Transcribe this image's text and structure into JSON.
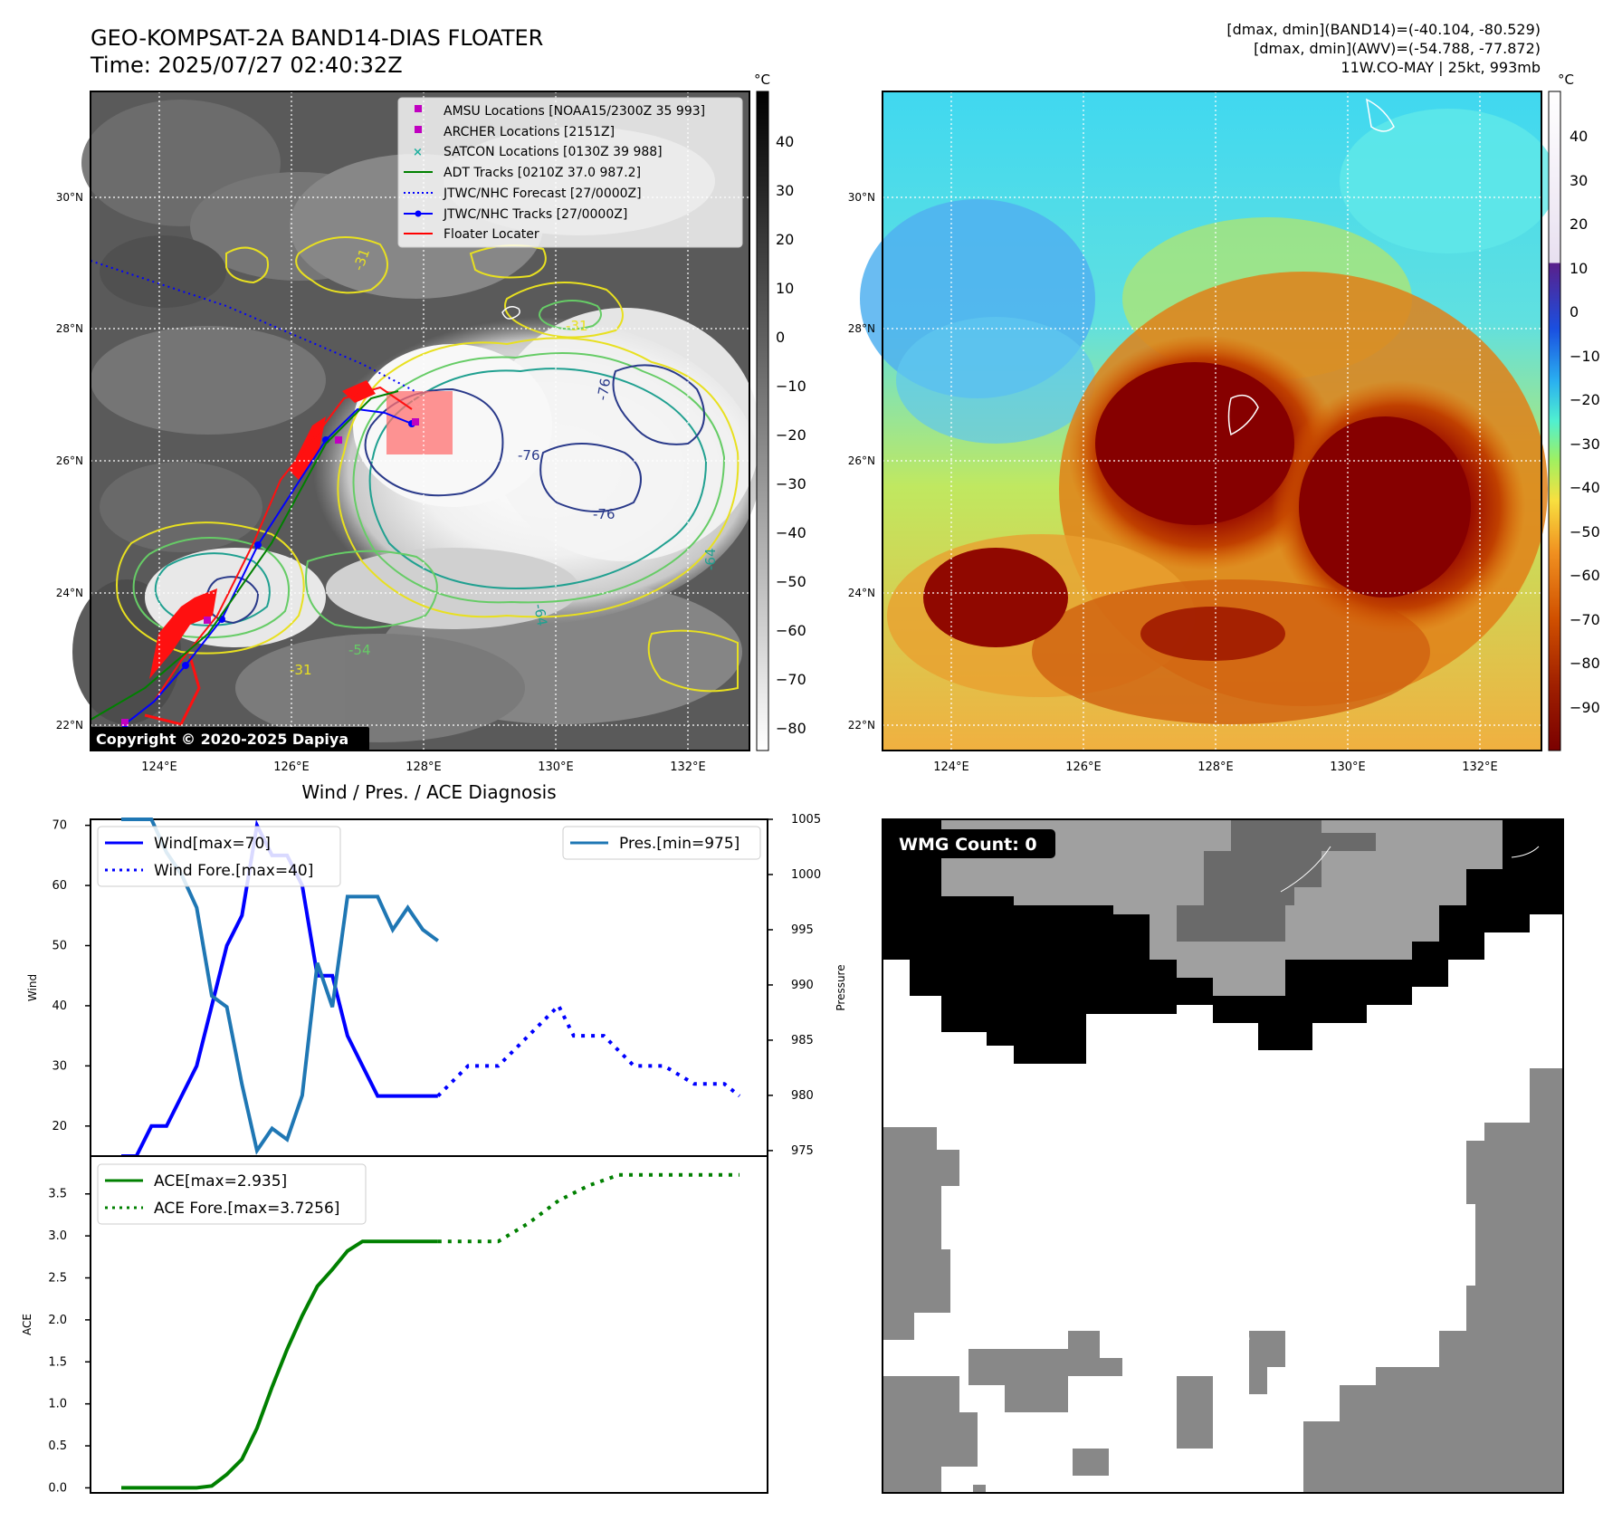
{
  "title": "GEO-KOMPSAT-2A BAND14-DIAS FLOATER",
  "time": "Time: 2025/07/27 02:40:32Z",
  "info_lines": [
    "[dmax, dmin](BAND14)=(-40.104, -80.529)",
    "[dmax, dmin](AWV)=(-54.788, -77.872)",
    "11W.CO-MAY | 25kt, 993mb"
  ],
  "copyright": "Copyright © 2020-2025 Dapiya",
  "map": {
    "lon_ticks": [
      "124°E",
      "126°E",
      "128°E",
      "130°E",
      "132°E"
    ],
    "lat_ticks": [
      "30°N",
      "28°N",
      "26°N",
      "24°N",
      "22°N"
    ],
    "ir_colorbar": {
      "unit": "°C",
      "ticks": [
        "40",
        "30",
        "20",
        "10",
        "0",
        "−10",
        "−20",
        "−30",
        "−40",
        "−50",
        "−60",
        "−70",
        "−80"
      ]
    },
    "wv_colorbar": {
      "unit": "°C",
      "ticks": [
        "40",
        "30",
        "20",
        "10",
        "0",
        "−10",
        "−20",
        "−30",
        "−40",
        "−50",
        "−60",
        "−70",
        "−80",
        "−90"
      ]
    },
    "contour_labels": [
      "-76",
      "-76",
      "-76",
      "-64",
      "-64",
      "-54",
      "-31",
      "-31",
      "-31"
    ],
    "legend": [
      {
        "label": "AMSU Locations [NOAA15/2300Z 35 993]",
        "color": "#c000c0",
        "marker": "square"
      },
      {
        "label": "ARCHER Locations [2151Z]",
        "color": "#c000c0",
        "marker": "square"
      },
      {
        "label": "SATCON Locations [0130Z 39 988]",
        "color": "#20b0a0",
        "marker": "x"
      },
      {
        "label": "ADT Tracks [0210Z 37.0 987.2]",
        "color": "#008000",
        "marker": "line"
      },
      {
        "label": "JTWC/NHC Forecast [27/0000Z]",
        "color": "#0000ff",
        "marker": "dotted"
      },
      {
        "label": "JTWC/NHC Tracks [27/0000Z]",
        "color": "#0000ff",
        "marker": "line-dot"
      },
      {
        "label": "Floater Locater",
        "color": "#ff0000",
        "marker": "line"
      }
    ]
  },
  "wmg": {
    "label": "WMG Count: 0"
  },
  "chart_data": [
    {
      "type": "line",
      "title": "Wind / Pres. / ACE Diagnosis",
      "ylabel": "Wind",
      "y2label": "Pressure",
      "ylim": [
        15,
        71
      ],
      "y2lim": [
        974.5,
        1005
      ],
      "yticks": [
        20,
        30,
        40,
        50,
        60,
        70
      ],
      "y2ticks": [
        975,
        980,
        985,
        990,
        995,
        1000,
        1005
      ],
      "series": [
        {
          "name": "Wind[max=70]",
          "color": "#0000ff",
          "style": "solid",
          "points": [
            [
              0,
              15
            ],
            [
              1,
              15
            ],
            [
              2,
              20
            ],
            [
              3,
              20
            ],
            [
              4,
              25
            ],
            [
              5,
              30
            ],
            [
              6,
              40
            ],
            [
              7,
              50
            ],
            [
              8,
              55
            ],
            [
              9,
              70
            ],
            [
              10,
              65
            ],
            [
              11,
              65
            ],
            [
              12,
              60
            ],
            [
              13,
              45
            ],
            [
              14,
              45
            ],
            [
              15,
              35
            ],
            [
              16,
              30
            ],
            [
              17,
              25
            ],
            [
              18,
              25
            ],
            [
              19,
              25
            ],
            [
              20,
              25
            ],
            [
              21,
              25
            ]
          ]
        },
        {
          "name": "Wind Fore.[max=40]",
          "color": "#0000ff",
          "style": "dotted",
          "points": [
            [
              21,
              25
            ],
            [
              23,
              30
            ],
            [
              25,
              30
            ],
            [
              27,
              35
            ],
            [
              29,
              40
            ],
            [
              30,
              35
            ],
            [
              32,
              35
            ],
            [
              34,
              30
            ],
            [
              36,
              30
            ],
            [
              38,
              27
            ],
            [
              40,
              27
            ],
            [
              41,
              25
            ]
          ]
        },
        {
          "name": "Pres.[min=975]",
          "color": "#1f77b4",
          "style": "solid",
          "axis": "right",
          "points": [
            [
              0,
              1005
            ],
            [
              1,
              1005
            ],
            [
              2,
              1005
            ],
            [
              3,
              1002
            ],
            [
              4,
              1000
            ],
            [
              5,
              997
            ],
            [
              6,
              989
            ],
            [
              7,
              988
            ],
            [
              8,
              981
            ],
            [
              9,
              975
            ],
            [
              10,
              977
            ],
            [
              11,
              976
            ],
            [
              12,
              980
            ],
            [
              13,
              992
            ],
            [
              14,
              988
            ],
            [
              15,
              998
            ],
            [
              16,
              998
            ],
            [
              17,
              998
            ],
            [
              18,
              995
            ],
            [
              19,
              997
            ],
            [
              20,
              995
            ],
            [
              21,
              994
            ]
          ]
        }
      ]
    },
    {
      "type": "line",
      "ylabel": "ACE",
      "ylim": [
        -0.06,
        3.95
      ],
      "yticks": [
        0.0,
        0.5,
        1.0,
        1.5,
        2.0,
        2.5,
        3.0,
        3.5
      ],
      "series": [
        {
          "name": "ACE[max=2.935]",
          "color": "#008000",
          "style": "solid",
          "points": [
            [
              0,
              0
            ],
            [
              1,
              0
            ],
            [
              2,
              0
            ],
            [
              3,
              0
            ],
            [
              4,
              0
            ],
            [
              5,
              0
            ],
            [
              6,
              0.0225
            ],
            [
              7,
              0.16
            ],
            [
              8,
              0.34
            ],
            [
              9,
              0.71
            ],
            [
              10,
              1.2
            ],
            [
              11,
              1.65
            ],
            [
              12,
              2.05
            ],
            [
              13,
              2.4
            ],
            [
              14,
              2.6
            ],
            [
              15,
              2.82
            ],
            [
              16,
              2.935
            ],
            [
              17,
              2.935
            ],
            [
              18,
              2.935
            ],
            [
              19,
              2.935
            ],
            [
              20,
              2.935
            ],
            [
              21,
              2.935
            ]
          ]
        },
        {
          "name": "ACE Fore.[max=3.7256]",
          "color": "#008000",
          "style": "dotted",
          "points": [
            [
              21,
              2.935
            ],
            [
              23,
              2.935
            ],
            [
              25,
              2.935
            ],
            [
              27,
              3.15
            ],
            [
              29,
              3.42
            ],
            [
              31,
              3.6
            ],
            [
              33,
              3.7256
            ],
            [
              35,
              3.7256
            ],
            [
              37,
              3.7256
            ],
            [
              39,
              3.7256
            ],
            [
              41,
              3.7256
            ]
          ]
        }
      ]
    }
  ]
}
